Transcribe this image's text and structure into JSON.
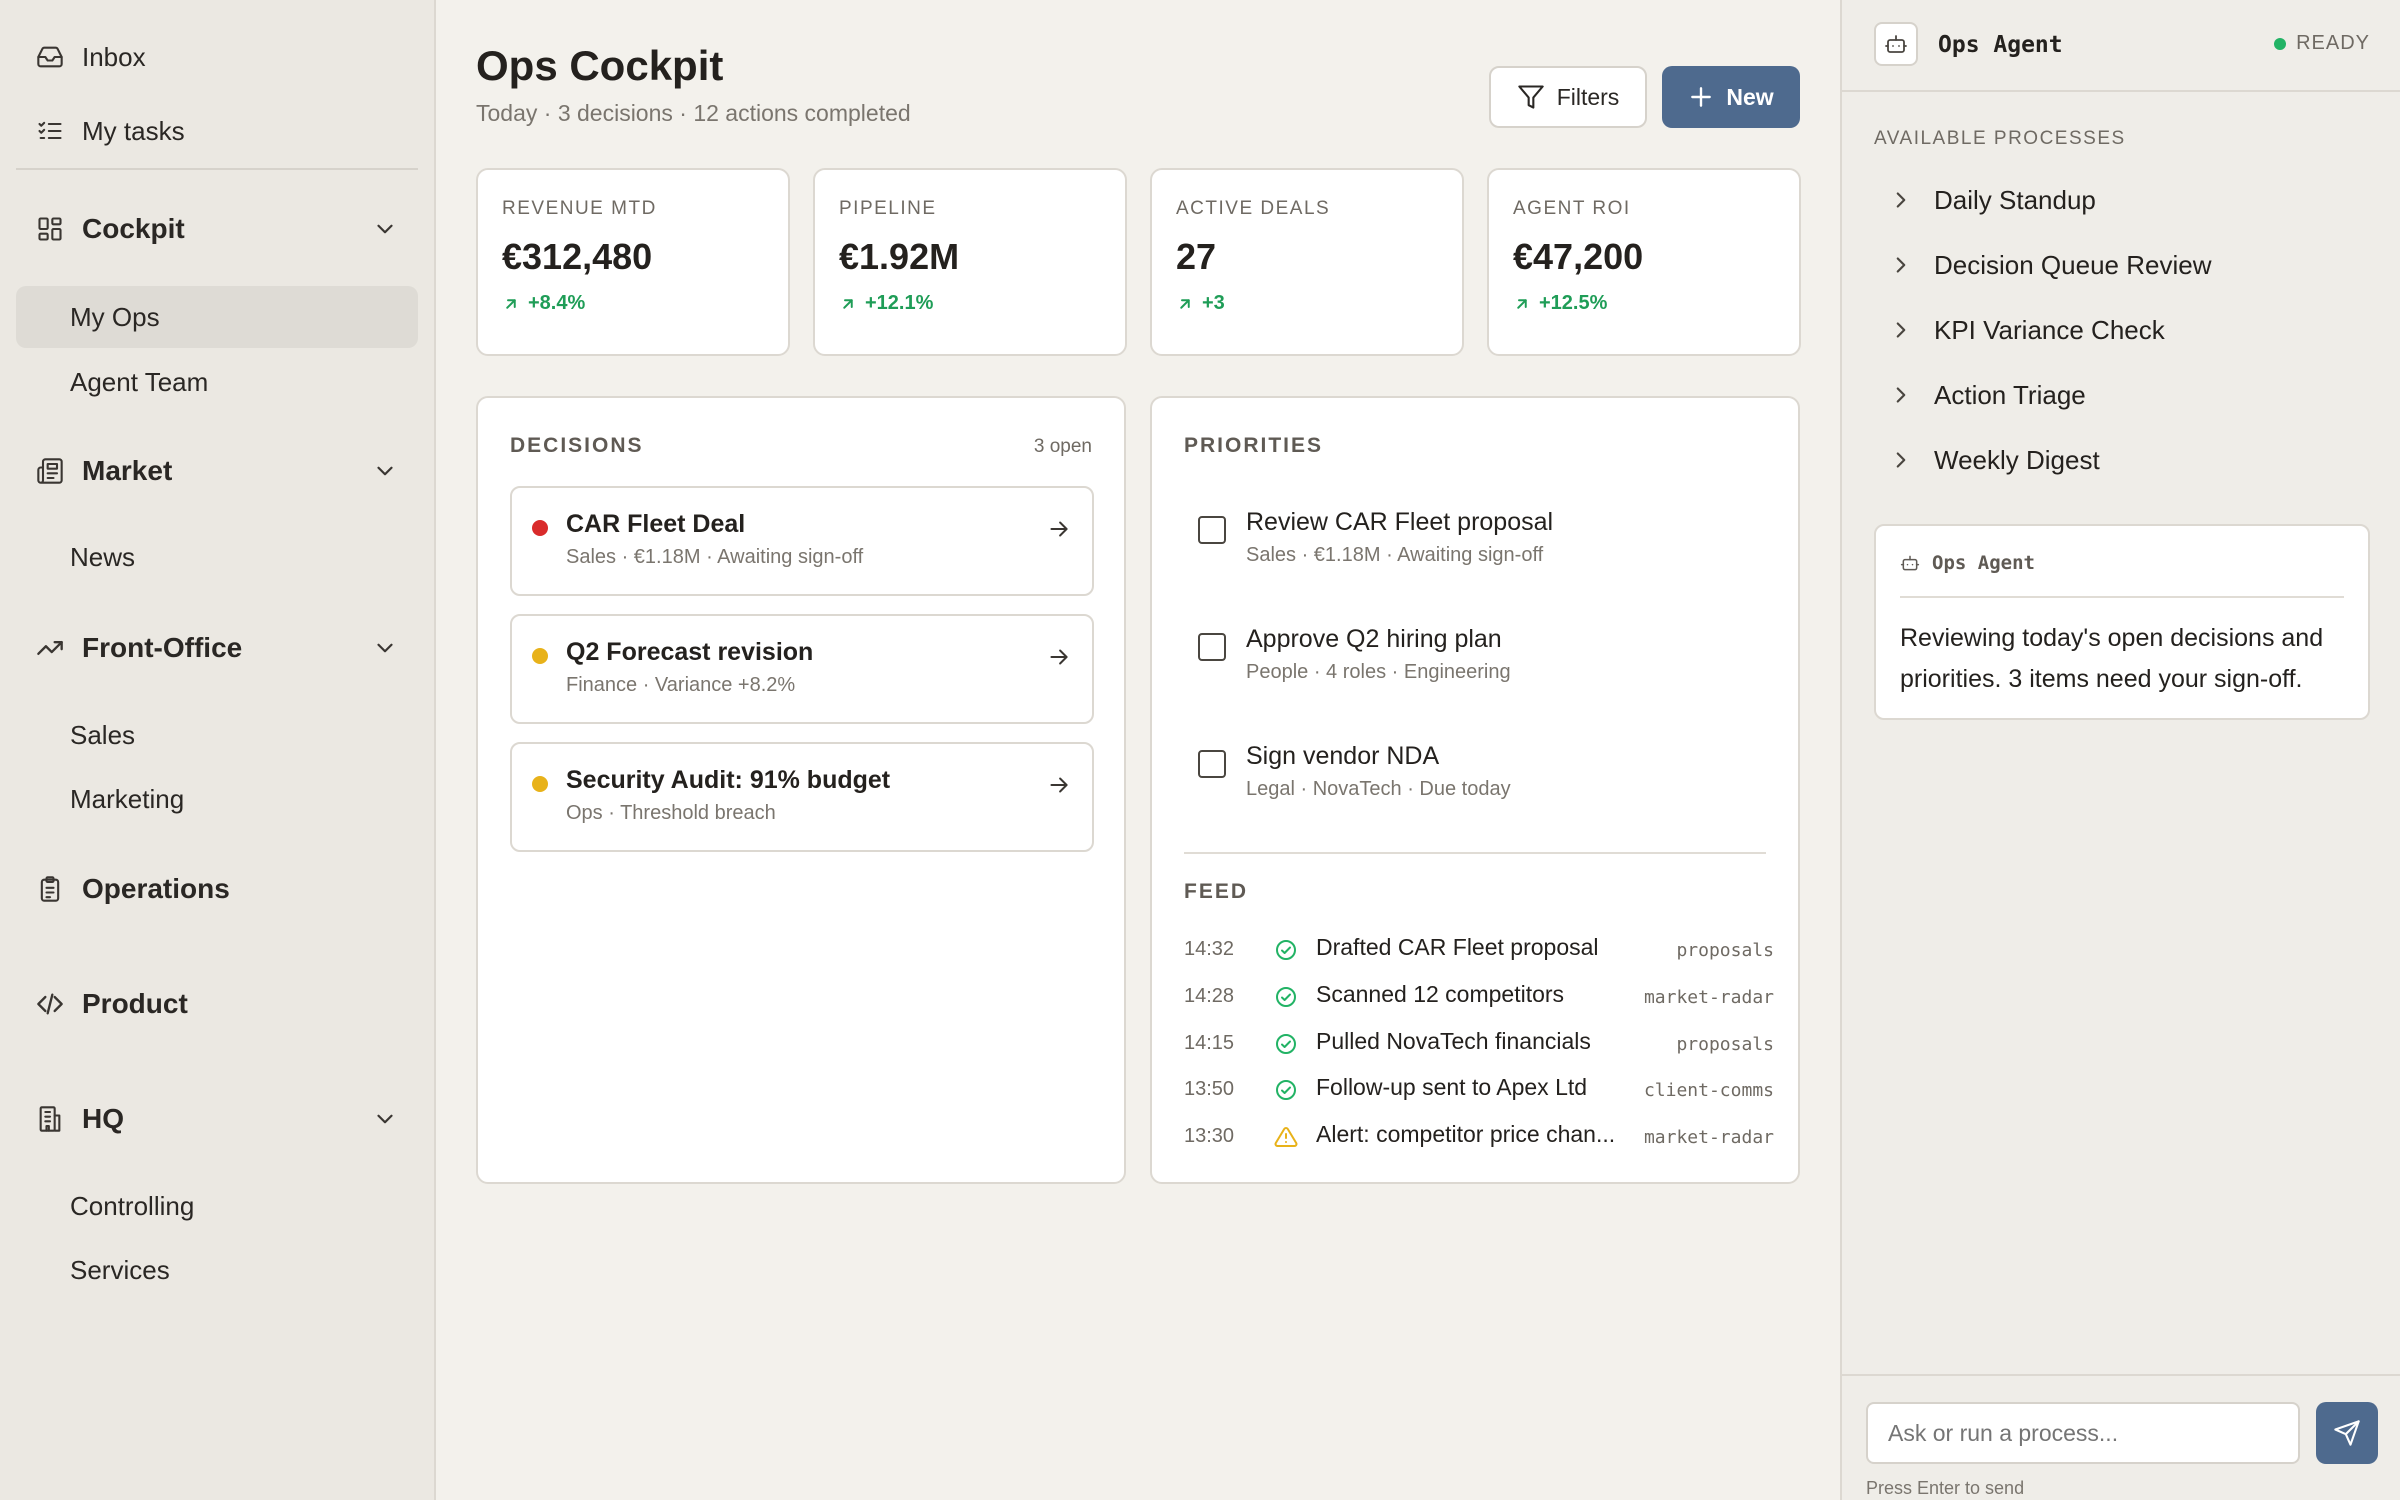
{
  "sidebar": {
    "top_items": [
      {
        "label": "Inbox",
        "icon": "inbox-icon"
      },
      {
        "label": "My tasks",
        "icon": "checklist-icon"
      }
    ],
    "sections": {
      "cockpit": {
        "label": "Cockpit",
        "items": [
          "My Ops",
          "Agent Team"
        ],
        "active": "My Ops"
      },
      "market": {
        "label": "Market",
        "items": [
          "News"
        ]
      },
      "front_office": {
        "label": "Front-Office",
        "items": [
          "Sales",
          "Marketing"
        ]
      },
      "operations": {
        "label": "Operations"
      },
      "product": {
        "label": "Product"
      },
      "hq": {
        "label": "HQ",
        "items": [
          "Controlling",
          "Services"
        ]
      }
    }
  },
  "header": {
    "title": "Ops Cockpit",
    "subtitle": "Today · 3 decisions · 12 actions completed",
    "filters_label": "Filters",
    "new_label": "New"
  },
  "kpis": [
    {
      "label": "REVENUE MTD",
      "value": "€312,480",
      "delta": "+8.4%"
    },
    {
      "label": "PIPELINE",
      "value": "€1.92M",
      "delta": "+12.1%"
    },
    {
      "label": "ACTIVE DEALS",
      "value": "27",
      "delta": "+3"
    },
    {
      "label": "AGENT ROI",
      "value": "€47,200",
      "delta": "+12.5%"
    }
  ],
  "decisions": {
    "heading": "DECISIONS",
    "count": "3 open",
    "items": [
      {
        "title": "CAR Fleet Deal",
        "meta": "Sales · €1.18M · Awaiting sign-off",
        "dot_color": "#d92b2b"
      },
      {
        "title": "Q2 Forecast revision",
        "meta": "Finance · Variance +8.2%",
        "dot_color": "#e8b21a"
      },
      {
        "title": "Security Audit: 91% budget",
        "meta": "Ops · Threshold breach",
        "dot_color": "#e8b21a"
      }
    ]
  },
  "priorities": {
    "heading": "PRIORITIES",
    "items": [
      {
        "title": "Review CAR Fleet proposal",
        "meta": "Sales · €1.18M · Awaiting sign-off"
      },
      {
        "title": "Approve Q2 hiring plan",
        "meta": "People · 4 roles · Engineering"
      },
      {
        "title": "Sign vendor NDA",
        "meta": "Legal · NovaTech · Due today"
      }
    ]
  },
  "feed": {
    "heading": "FEED",
    "items": [
      {
        "time": "14:32",
        "text": "Drafted CAR Fleet proposal",
        "tag": "proposals",
        "status": "check-circle-icon"
      },
      {
        "time": "14:28",
        "text": "Scanned 12 competitors",
        "tag": "market-radar",
        "status": "check-circle-icon"
      },
      {
        "time": "14:15",
        "text": "Pulled NovaTech financials",
        "tag": "proposals",
        "status": "check-circle-icon"
      },
      {
        "time": "13:50",
        "text": "Follow-up sent to Apex Ltd",
        "tag": "client-comms",
        "status": "check-circle-icon"
      },
      {
        "time": "13:30",
        "text": "Alert: competitor price chan...",
        "tag": "market-radar",
        "status": "warning-icon"
      }
    ]
  },
  "agent": {
    "name": "Ops Agent",
    "status": "READY",
    "processes_heading": "AVAILABLE PROCESSES",
    "processes": [
      "Daily Standup",
      "Decision Queue Review",
      "KPI Variance Check",
      "Action Triage",
      "Weekly Digest"
    ],
    "card_name": "Ops Agent",
    "message": "Reviewing today's open decisions and priorities. 3 items need your sign-off.",
    "input_placeholder": "Ask or run a process...",
    "hint": "Press Enter to send"
  },
  "colors": {
    "accent": "#4e6a8e",
    "positive": "#1f9d57",
    "danger": "#d92b2b",
    "warning": "#e8b21a",
    "ready": "#22b365"
  }
}
